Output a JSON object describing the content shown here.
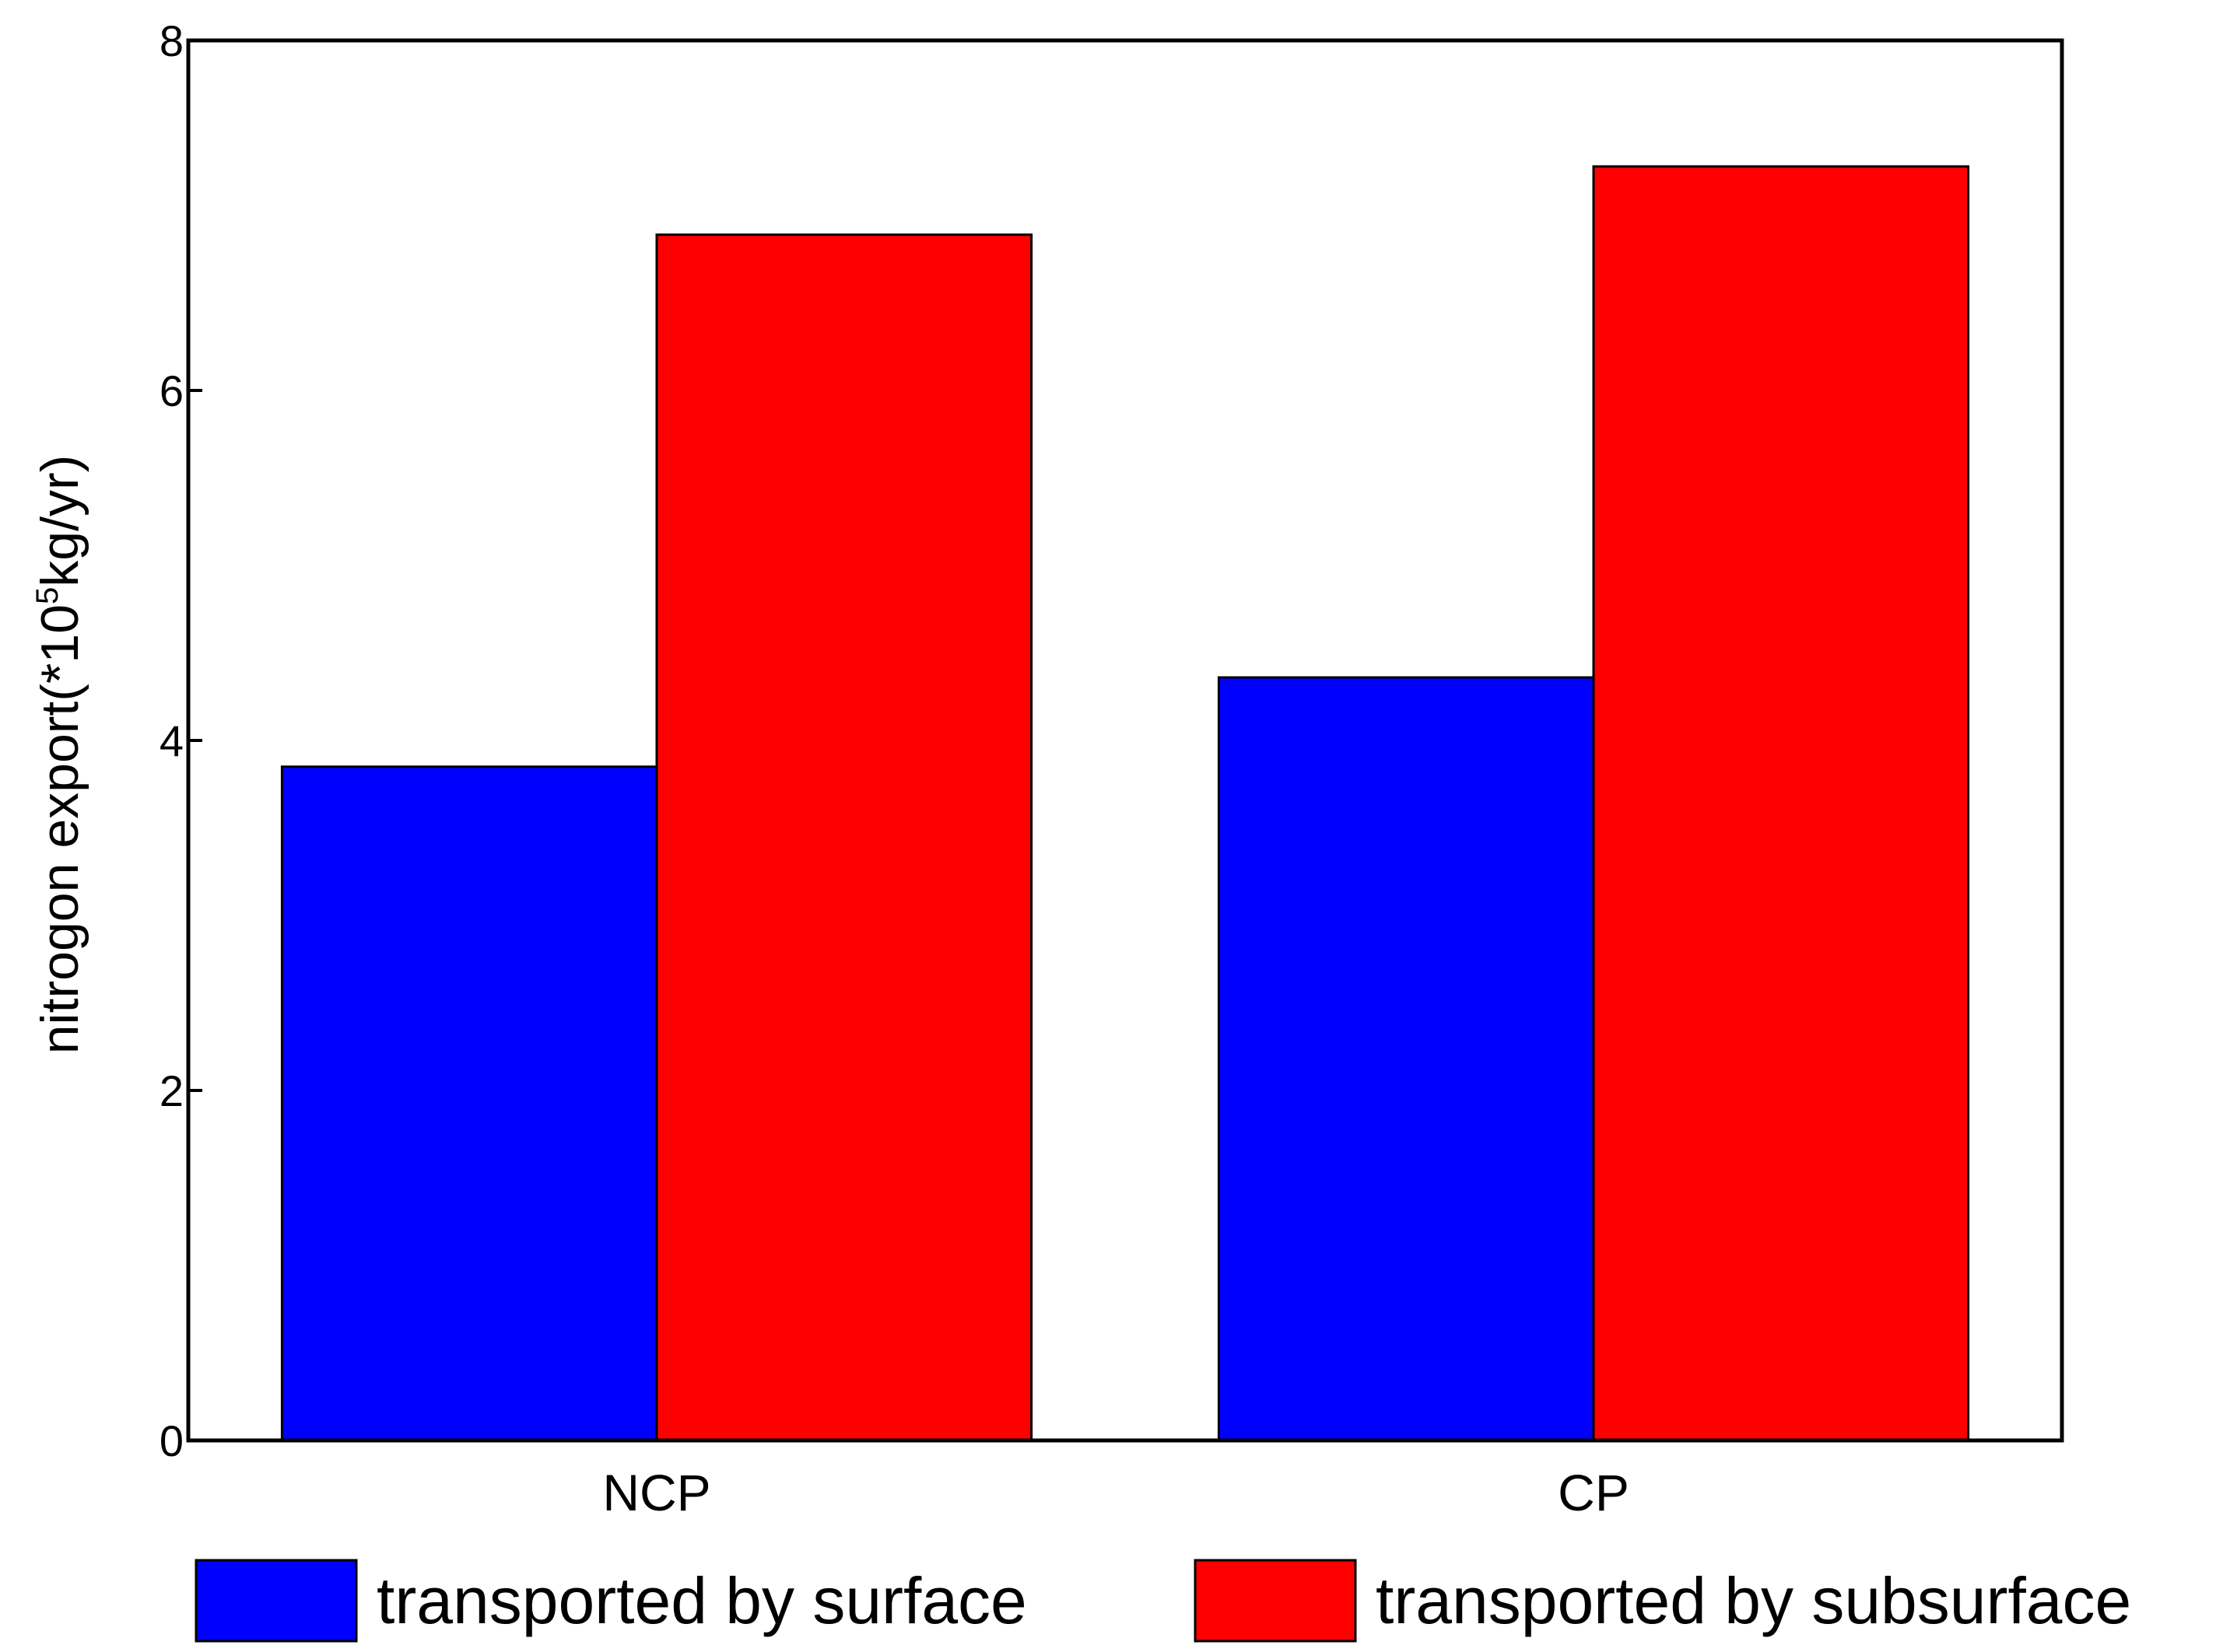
{
  "chart_data": {
    "type": "bar",
    "categories": [
      "NCP",
      "CP"
    ],
    "series": [
      {
        "name": "transported by surface",
        "color": "#0000FF",
        "values": [
          3.85,
          4.36
        ]
      },
      {
        "name": "transported by subsurface",
        "color": "#FF0000",
        "values": [
          6.89,
          7.28
        ]
      }
    ],
    "ylabel": {
      "prefix": "nitrogon export(*10",
      "superscript": "5",
      "suffix": "kg/yr)"
    },
    "ylim": [
      0,
      8
    ],
    "yticks": [
      "0",
      "2",
      "4",
      "6",
      "8"
    ],
    "grid": false,
    "legend_position": "bottom"
  }
}
